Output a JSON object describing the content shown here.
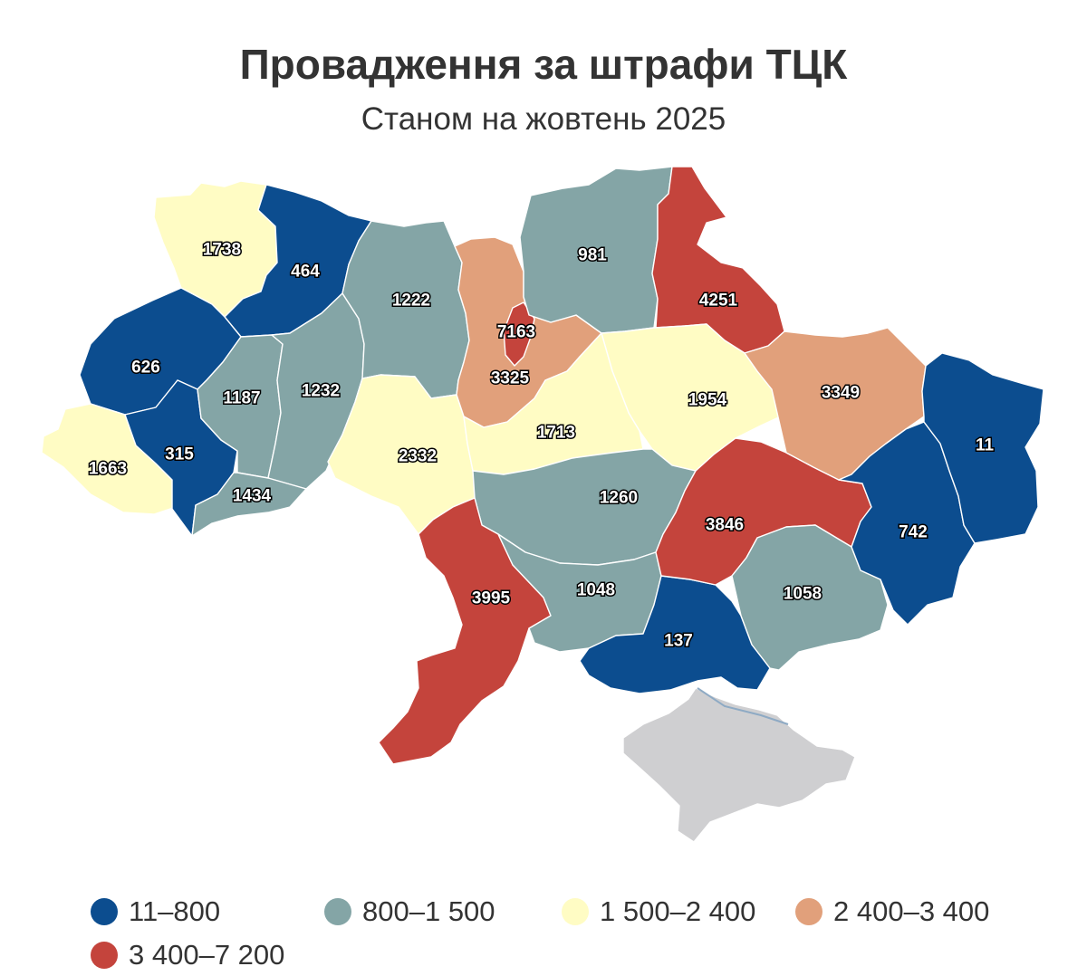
{
  "title": "Провадження за штрафи ТЦК",
  "subtitle": "Станом на жовтень 2025",
  "colors": {
    "c1": "#0c4d8f",
    "c2": "#84a5a6",
    "c3": "#fffcc4",
    "c4": "#e1a07b",
    "c5": "#c4443c",
    "nodata": "#cfcfd1",
    "water": "#8eaac4"
  },
  "legend": [
    {
      "label": "11–800",
      "color": "#0c4d8f"
    },
    {
      "label": "800–1 500",
      "color": "#84a5a6"
    },
    {
      "label": "1 500–2 400",
      "color": "#fffcc4"
    },
    {
      "label": "2 400–3 400",
      "color": "#e1a07b"
    },
    {
      "label": "3 400–7 200",
      "color": "#c4443c"
    }
  ],
  "regions": [
    {
      "value": "1738",
      "color": "#fffcc4"
    },
    {
      "value": "464",
      "color": "#0c4d8f"
    },
    {
      "value": "626",
      "color": "#0c4d8f"
    },
    {
      "value": "1663",
      "color": "#fffcc4"
    },
    {
      "value": "315",
      "color": "#0c4d8f"
    },
    {
      "value": "1187",
      "color": "#84a5a6"
    },
    {
      "value": "1232",
      "color": "#84a5a6"
    },
    {
      "value": "1434",
      "color": "#84a5a6"
    },
    {
      "value": "1222",
      "color": "#84a5a6"
    },
    {
      "value": "2332",
      "color": "#fffcc4"
    },
    {
      "value": "3325",
      "color": "#e1a07b"
    },
    {
      "value": "7163",
      "color": "#c4443c"
    },
    {
      "value": "981",
      "color": "#84a5a6"
    },
    {
      "value": "4251",
      "color": "#c4443c"
    },
    {
      "value": "1954",
      "color": "#fffcc4"
    },
    {
      "value": "1713",
      "color": "#fffcc4"
    },
    {
      "value": "1260",
      "color": "#84a5a6"
    },
    {
      "value": "3995",
      "color": "#c4443c"
    },
    {
      "value": "1048",
      "color": "#84a5a6"
    },
    {
      "value": "137",
      "color": "#0c4d8f"
    },
    {
      "value": "3846",
      "color": "#c4443c"
    },
    {
      "value": "1058",
      "color": "#84a5a6"
    },
    {
      "value": "3349",
      "color": "#e1a07b"
    },
    {
      "value": "742",
      "color": "#0c4d8f"
    },
    {
      "value": "11",
      "color": "#0c4d8f"
    }
  ]
}
